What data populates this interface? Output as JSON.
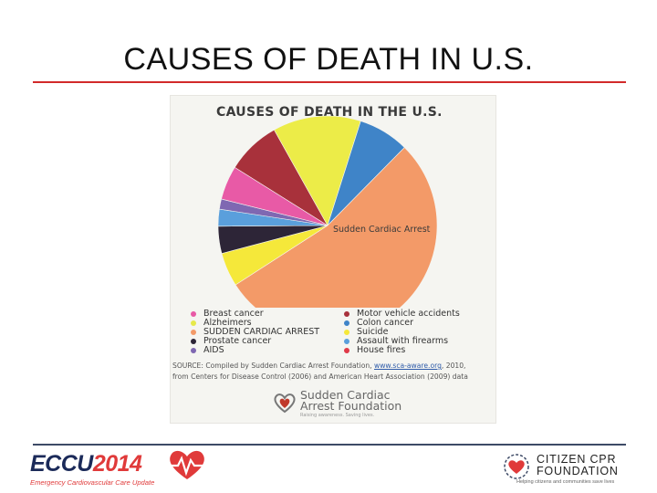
{
  "slide": {
    "title": "CAUSES OF DEATH IN U.S."
  },
  "chart_data": {
    "type": "pie",
    "title": "CAUSES OF DEATH IN THE U.S.",
    "slices": [
      {
        "label": "Motor vehicle accidents",
        "value": 8.0,
        "color": "#a8313b"
      },
      {
        "label": "Alzheimers",
        "value": 13.0,
        "color": "#ecec48"
      },
      {
        "label": "Colon cancer",
        "value": 7.5,
        "color": "#3f84c8"
      },
      {
        "label": "SUDDEN CARDIAC ARREST",
        "value": 53.5,
        "color": "#f39a68"
      },
      {
        "label": "Suicide",
        "value": 5.0,
        "color": "#f5e83a"
      },
      {
        "label": "Prostate cancer",
        "value": 4.0,
        "color": "#2d2537"
      },
      {
        "label": "Assault with firearms",
        "value": 2.5,
        "color": "#5a9fdc"
      },
      {
        "label": "AIDS",
        "value": 1.5,
        "color": "#7f68b2"
      },
      {
        "label": "Breast cancer",
        "value": 5.0,
        "color": "#e85aa6"
      }
    ],
    "slice_annotation": "Sudden Cardiac Arrest",
    "legend": {
      "left": [
        {
          "label": "Breast cancer",
          "color": "#e85aa6"
        },
        {
          "label": "Alzheimers",
          "color": "#e6e94a"
        },
        {
          "label": "SUDDEN CARDIAC ARREST",
          "color": "#f39a68"
        },
        {
          "label": "Prostate cancer",
          "color": "#2d2537"
        },
        {
          "label": "AIDS",
          "color": "#7f68b2"
        }
      ],
      "right": [
        {
          "label": "Motor vehicle accidents",
          "color": "#a8313b"
        },
        {
          "label": "Colon cancer",
          "color": "#3f84c8"
        },
        {
          "label": "Suicide",
          "color": "#f5e83a"
        },
        {
          "label": "Assault with firearms",
          "color": "#5a9fdc"
        },
        {
          "label": "House fires",
          "color": "#e03a48"
        }
      ]
    },
    "source": {
      "prefix": "SOURCE: Compiled by Sudden Cardiac Arrest Foundation, ",
      "link": "www.sca-aware.org",
      "suffix": ", 2010,",
      "line2": "from Centers for Disease Control (2006) and American Heart Association (2009) data"
    },
    "foundation_logo": {
      "line1": "Sudden Cardiac",
      "line2": "Arrest Foundation",
      "tagline": "Raising awareness. Saving lives."
    }
  },
  "footer": {
    "eccu": {
      "brand": "ECCU",
      "year": "2014",
      "subtitle": "Emergency Cardiovascular Care Update"
    },
    "citizen_cpr": {
      "line1": "CITIZEN CPR",
      "line2": "FOUNDATION",
      "tagline": "Helping citizens and communities save lives"
    },
    "colors": {
      "title_rule": "#d22a2a",
      "footer_rule": "#3d4a66",
      "eccu_navy": "#1b2a59",
      "eccu_red": "#e03a3a"
    }
  }
}
